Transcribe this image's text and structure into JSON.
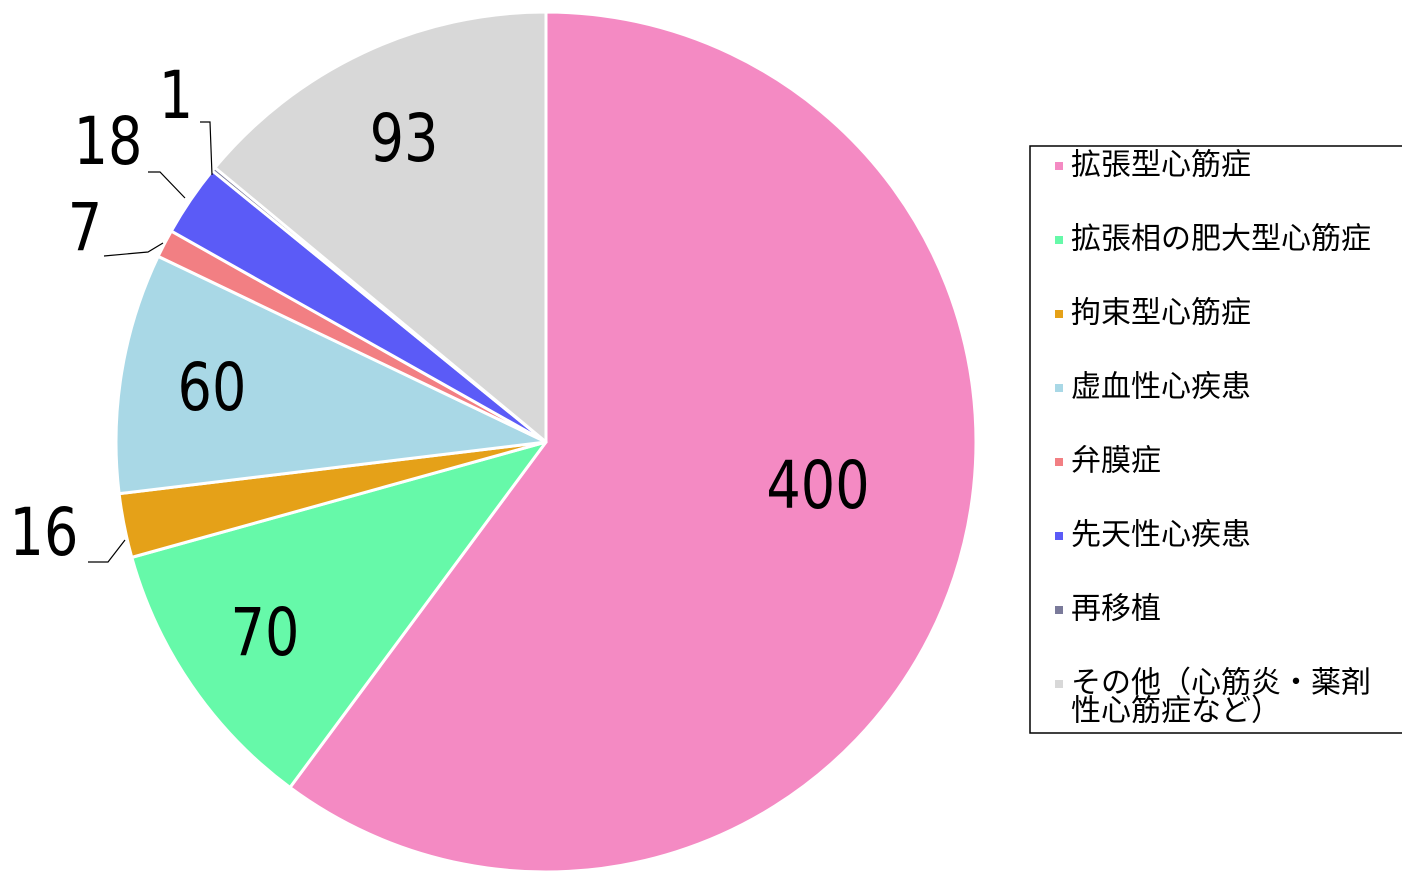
{
  "chart_data": {
    "type": "pie",
    "title": "",
    "start_angle_deg": 0,
    "direction": "clockwise",
    "legend_position": "right",
    "slice_border_color": "#ffffff",
    "slices": [
      {
        "label": "拡張型心筋症",
        "value": 400,
        "value_label": "400",
        "color": "#f48ac3"
      },
      {
        "label": "拡張相の肥大型心筋症",
        "value": 70,
        "value_label": "70",
        "color": "#66f9a9"
      },
      {
        "label": "拘束型心筋症",
        "value": 16,
        "value_label": "16",
        "color": "#e5a118"
      },
      {
        "label": "虚血性心疾患",
        "value": 60,
        "value_label": "60",
        "color": "#a9d8e6"
      },
      {
        "label": "弁膜症",
        "value": 7,
        "value_label": "7",
        "color": "#f27f83"
      },
      {
        "label": "先天性心疾患",
        "value": 18,
        "value_label": "18",
        "color": "#5b5bf7"
      },
      {
        "label": "再移植",
        "value": 1,
        "value_label": "1",
        "color": "#7a7a9a"
      },
      {
        "label": "その他（心筋炎・薬剤性心筋症など）",
        "value": 93,
        "value_label": "93",
        "color": "#d8d8d8"
      }
    ],
    "legend_lines": [
      [
        "拡張型心筋症"
      ],
      [
        "拡張相の肥大型心筋症"
      ],
      [
        "拘束型心筋症"
      ],
      [
        "虚血性心疾患"
      ],
      [
        "弁膜症"
      ],
      [
        "先天性心疾患"
      ],
      [
        "再移植"
      ],
      [
        "その他（心筋炎・薬剤",
        "性心筋症など）"
      ]
    ]
  }
}
